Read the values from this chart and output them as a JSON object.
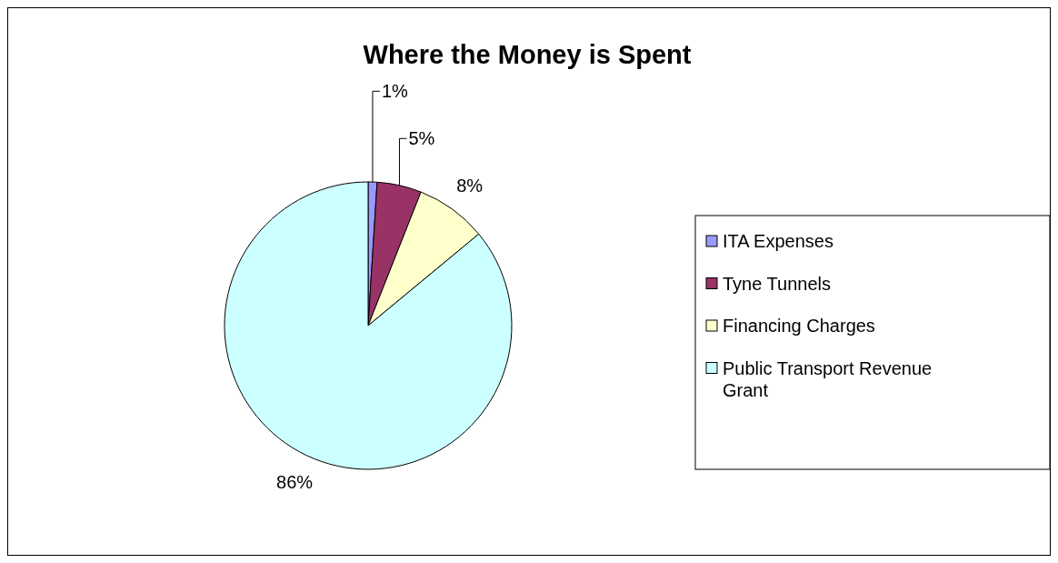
{
  "chart_data": {
    "type": "pie",
    "title": "Where the Money is Spent",
    "categories": [
      "ITA Expenses",
      "Tyne Tunnels",
      "Financing Charges",
      "Public Transport Revenue Grant"
    ],
    "values": [
      1,
      5,
      8,
      86
    ],
    "colors": [
      "#9999ff",
      "#993366",
      "#ffffcc",
      "#ccffff"
    ],
    "value_labels": [
      "1%",
      "5%",
      "8%",
      "86%"
    ],
    "legend": "right"
  }
}
